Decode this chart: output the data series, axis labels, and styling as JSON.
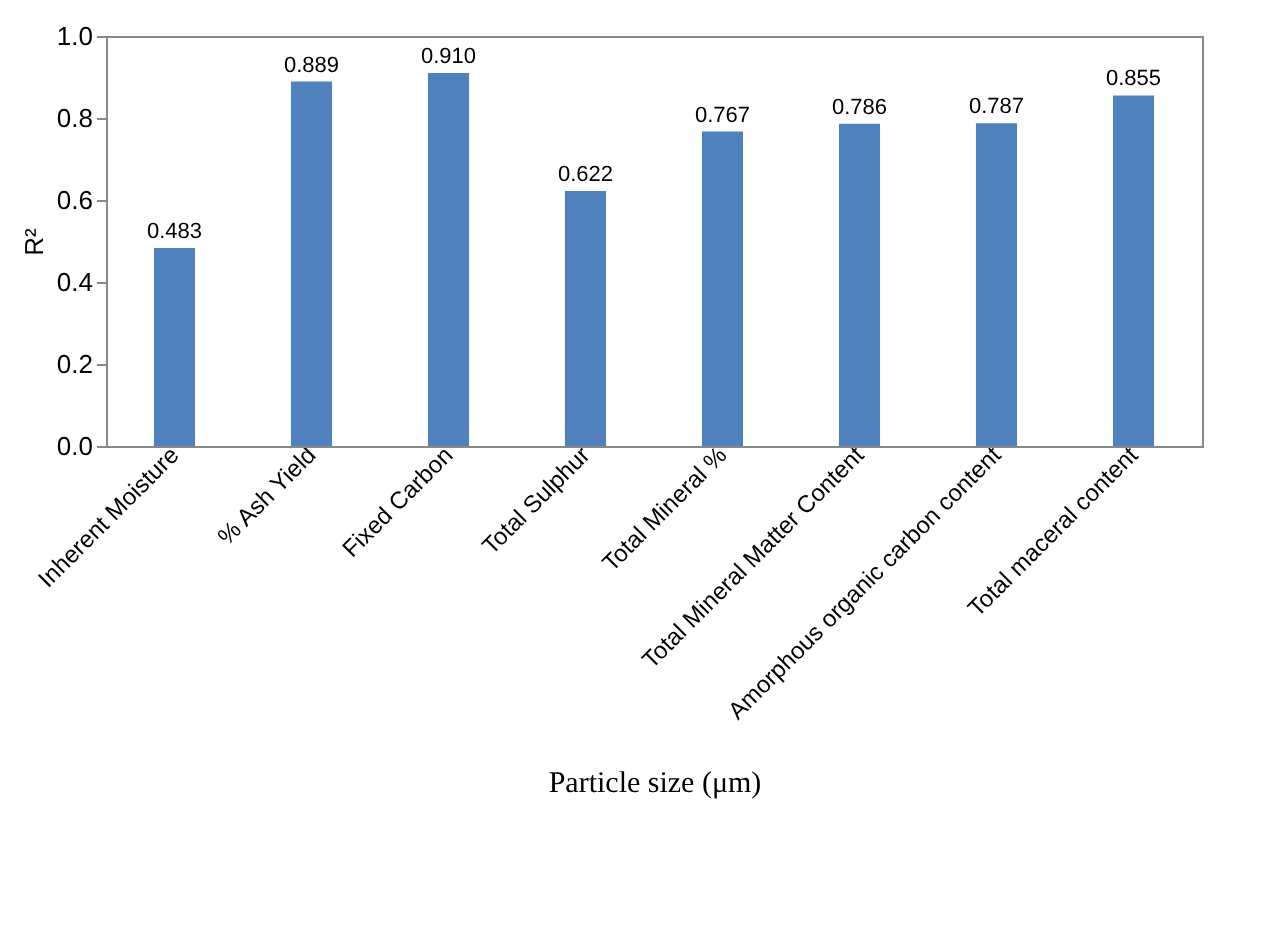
{
  "chart_data": {
    "type": "bar",
    "categories": [
      "Inherent Moisture",
      "% Ash Yield",
      "Fixed Carbon",
      "Total Sulphur",
      "Total Mineral %",
      "Total Mineral Matter Content",
      "Amorphous organic carbon content",
      "Total maceral content"
    ],
    "values": [
      0.483,
      0.889,
      0.91,
      0.622,
      0.767,
      0.786,
      0.787,
      0.855
    ],
    "color": "#4f81bd",
    "xlabel": "Particle size (μm)",
    "ylabel": "R²",
    "ylim": [
      0,
      1.0
    ],
    "yticks": [
      {
        "value": 0,
        "label": "0.0"
      },
      {
        "value": 0.2,
        "label": "0.2"
      },
      {
        "value": 0.4,
        "label": "0.4"
      },
      {
        "value": 0.6,
        "label": "0.6"
      },
      {
        "value": 0.8,
        "label": "0.8"
      },
      {
        "value": 1.0,
        "label": "1.0"
      }
    ],
    "value_labels": [
      "0.483",
      "0.889",
      "0.910",
      "0.622",
      "0.767",
      "0.786",
      "0.787",
      "0.855"
    ],
    "grid": false
  }
}
